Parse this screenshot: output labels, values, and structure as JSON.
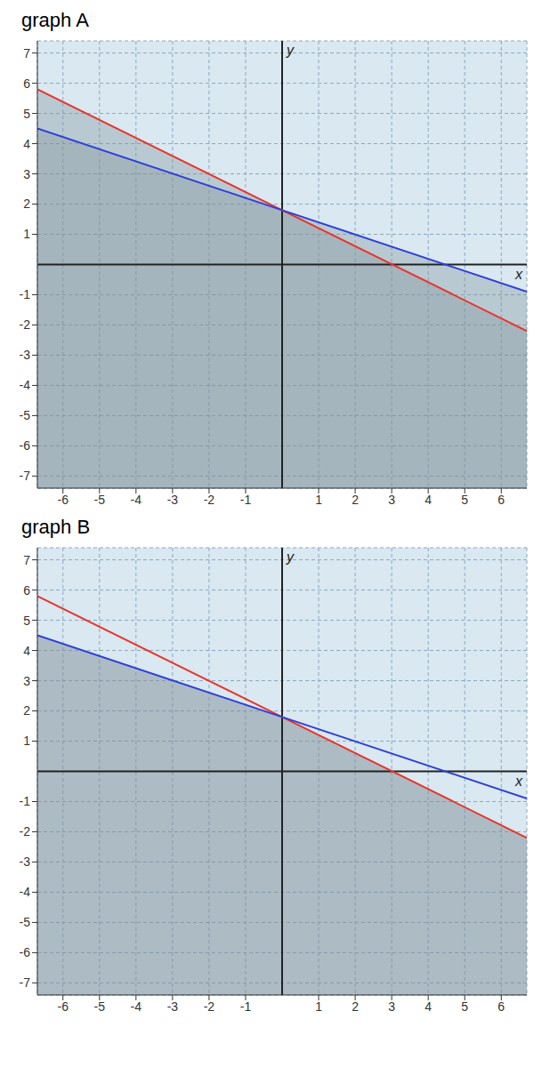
{
  "chart_data": [
    {
      "type": "line",
      "title": "graph A",
      "x_label": "x",
      "y_label": "y",
      "xlim": [
        -6.7,
        6.7
      ],
      "ylim": [
        -7.4,
        7.4
      ],
      "xticks": [
        -6,
        -5,
        -4,
        -3,
        -2,
        -1,
        1,
        2,
        3,
        4,
        5,
        6
      ],
      "yticks": [
        -7,
        -6,
        -5,
        -4,
        -3,
        -2,
        -1,
        1,
        2,
        3,
        4,
        5,
        6,
        7
      ],
      "grid": true,
      "x": [
        -6.7,
        0,
        6.7
      ],
      "series": [
        {
          "type": "area",
          "color": "#7f8e98",
          "values": [
            5.8,
            1.8,
            -2.2
          ]
        },
        {
          "type": "area",
          "color": "#7f8e98",
          "values": [
            4.5,
            1.8,
            -0.9
          ]
        },
        {
          "type": "line",
          "color": "#e8342a",
          "values": [
            5.8,
            1.8,
            -2.2
          ]
        },
        {
          "type": "line",
          "color": "#2f3fd6",
          "values": [
            4.5,
            1.8,
            -0.9
          ]
        }
      ]
    },
    {
      "type": "line",
      "title": "graph B",
      "x_label": "x",
      "y_label": "y",
      "xlim": [
        -6.7,
        6.7
      ],
      "ylim": [
        -7.4,
        7.4
      ],
      "xticks": [
        -6,
        -5,
        -4,
        -3,
        -2,
        -1,
        1,
        2,
        3,
        4,
        5,
        6
      ],
      "yticks": [
        -7,
        -6,
        -5,
        -4,
        -3,
        -2,
        -1,
        1,
        2,
        3,
        4,
        5,
        6,
        7
      ],
      "grid": true,
      "x": [
        -6.7,
        0,
        6.7
      ],
      "series": [
        {
          "type": "area",
          "color": "#7f8e98",
          "values": [
            4.5,
            1.8,
            -2.2
          ]
        },
        {
          "type": "line",
          "color": "#e8342a",
          "values": [
            5.8,
            1.8,
            -2.2
          ]
        },
        {
          "type": "line",
          "color": "#2f3fd6",
          "values": [
            4.5,
            1.8,
            -0.9
          ]
        }
      ]
    }
  ]
}
